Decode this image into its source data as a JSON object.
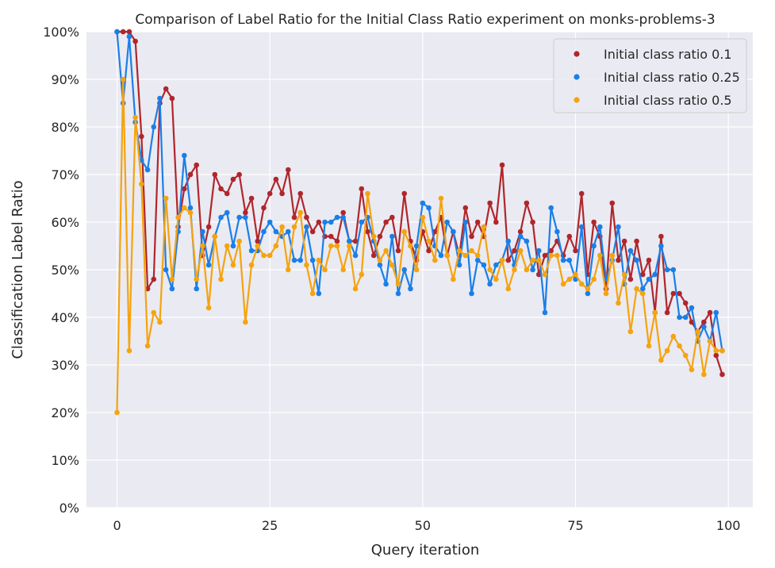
{
  "chart_data": {
    "type": "line",
    "title": "Comparison of Label Ratio for the Initial Class Ratio experiment on monks-problems-3",
    "xlabel": "Query iteration",
    "ylabel": "Classification Label Ratio",
    "xlim": [
      -5,
      104
    ],
    "ylim": [
      0,
      1
    ],
    "xticks": [
      0,
      25,
      50,
      75,
      100
    ],
    "xtick_labels": [
      "0",
      "25",
      "50",
      "75",
      "100"
    ],
    "yticks": [
      0,
      0.1,
      0.2,
      0.3,
      0.4,
      0.5,
      0.6,
      0.7,
      0.8,
      0.9,
      1.0
    ],
    "ytick_labels": [
      "0%",
      "10%",
      "20%",
      "30%",
      "40%",
      "50%",
      "60%",
      "70%",
      "80%",
      "90%",
      "100%"
    ],
    "grid": true,
    "legend_position": "top-right",
    "background_color": "#eaeaf2",
    "series": [
      {
        "name": "Initial class ratio 0.1",
        "color": "#b0262b",
        "values": [
          1.0,
          1.0,
          1.0,
          0.98,
          0.78,
          0.46,
          0.48,
          0.85,
          0.88,
          0.86,
          0.59,
          0.67,
          0.7,
          0.72,
          0.53,
          0.59,
          0.7,
          0.67,
          0.66,
          0.69,
          0.7,
          0.62,
          0.65,
          0.56,
          0.63,
          0.66,
          0.69,
          0.66,
          0.71,
          0.61,
          0.66,
          0.61,
          0.58,
          0.6,
          0.57,
          0.57,
          0.56,
          0.62,
          0.56,
          0.56,
          0.67,
          0.58,
          0.53,
          0.57,
          0.6,
          0.61,
          0.54,
          0.66,
          0.56,
          0.52,
          0.58,
          0.54,
          0.58,
          0.61,
          0.53,
          0.58,
          0.53,
          0.63,
          0.57,
          0.6,
          0.57,
          0.64,
          0.6,
          0.72,
          0.52,
          0.54,
          0.58,
          0.64,
          0.6,
          0.49,
          0.53,
          0.54,
          0.56,
          0.53,
          0.57,
          0.54,
          0.66,
          0.49,
          0.6,
          0.57,
          0.46,
          0.64,
          0.52,
          0.56,
          0.48,
          0.56,
          0.49,
          0.52,
          0.41,
          0.57,
          0.41,
          0.45,
          0.45,
          0.43,
          0.39,
          0.37,
          0.39,
          0.41,
          0.32,
          0.28
        ]
      },
      {
        "name": "Initial class ratio 0.25",
        "color": "#1a7fe8",
        "values": [
          1.0,
          0.85,
          0.99,
          0.81,
          0.73,
          0.71,
          0.8,
          0.86,
          0.5,
          0.46,
          0.58,
          0.74,
          0.63,
          0.46,
          0.58,
          0.51,
          0.57,
          0.61,
          0.62,
          0.55,
          0.61,
          0.61,
          0.54,
          0.54,
          0.58,
          0.6,
          0.58,
          0.57,
          0.58,
          0.52,
          0.52,
          0.59,
          0.52,
          0.45,
          0.6,
          0.6,
          0.61,
          0.61,
          0.56,
          0.53,
          0.6,
          0.61,
          0.56,
          0.51,
          0.47,
          0.57,
          0.45,
          0.5,
          0.46,
          0.55,
          0.64,
          0.63,
          0.55,
          0.53,
          0.6,
          0.58,
          0.51,
          0.6,
          0.45,
          0.52,
          0.51,
          0.47,
          0.51,
          0.52,
          0.56,
          0.51,
          0.57,
          0.56,
          0.5,
          0.54,
          0.41,
          0.63,
          0.58,
          0.52,
          0.52,
          0.48,
          0.59,
          0.45,
          0.55,
          0.59,
          0.48,
          0.52,
          0.59,
          0.47,
          0.54,
          0.52,
          0.46,
          0.48,
          0.49,
          0.55,
          0.5,
          0.5,
          0.4,
          0.4,
          0.42,
          0.35,
          0.38,
          0.35,
          0.41,
          0.33
        ]
      },
      {
        "name": "Initial class ratio 0.5",
        "color": "#f5a30f",
        "values": [
          0.2,
          0.9,
          0.33,
          0.82,
          0.68,
          0.34,
          0.41,
          0.39,
          0.65,
          0.48,
          0.61,
          0.63,
          0.62,
          0.48,
          0.55,
          0.42,
          0.57,
          0.48,
          0.55,
          0.51,
          0.56,
          0.39,
          0.51,
          0.55,
          0.53,
          0.53,
          0.55,
          0.59,
          0.5,
          0.59,
          0.62,
          0.51,
          0.45,
          0.52,
          0.5,
          0.55,
          0.55,
          0.5,
          0.55,
          0.46,
          0.49,
          0.66,
          0.57,
          0.52,
          0.54,
          0.51,
          0.47,
          0.58,
          0.55,
          0.5,
          0.61,
          0.56,
          0.52,
          0.65,
          0.53,
          0.48,
          0.54,
          0.53,
          0.54,
          0.53,
          0.59,
          0.5,
          0.48,
          0.52,
          0.46,
          0.5,
          0.54,
          0.5,
          0.52,
          0.52,
          0.49,
          0.53,
          0.53,
          0.47,
          0.48,
          0.49,
          0.47,
          0.46,
          0.48,
          0.53,
          0.45,
          0.53,
          0.43,
          0.49,
          0.37,
          0.46,
          0.45,
          0.34,
          0.41,
          0.31,
          0.33,
          0.36,
          0.34,
          0.32,
          0.29,
          0.37,
          0.28,
          0.35,
          0.33,
          0.33
        ]
      }
    ]
  }
}
